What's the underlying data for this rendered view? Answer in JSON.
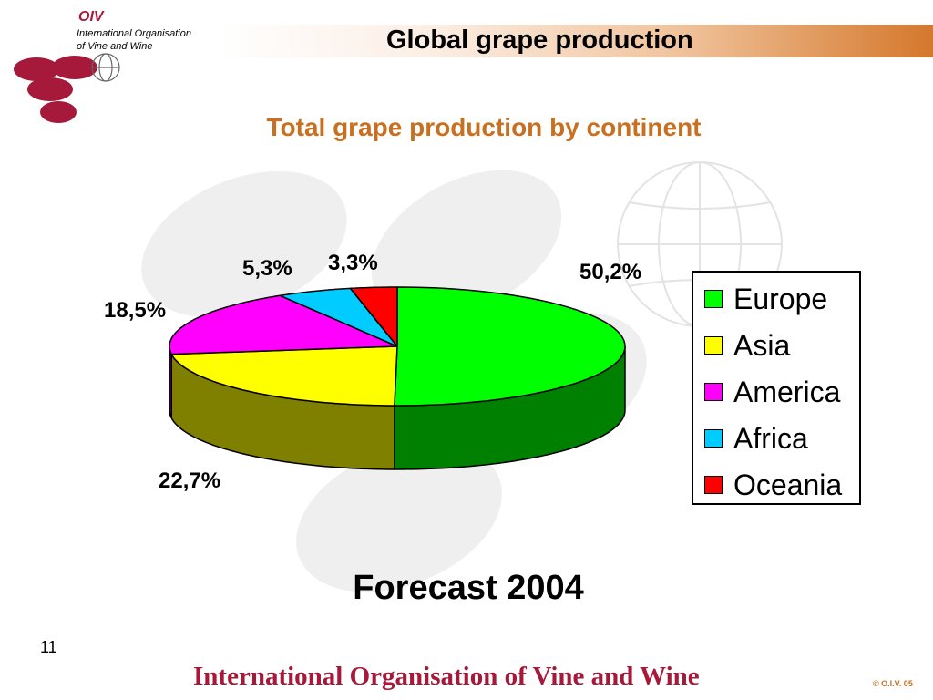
{
  "header": {
    "title": "Global grape production",
    "logo_text": "OIV",
    "org_line_1": "International Organisation",
    "org_line_2": "of  Vine  and  Wine"
  },
  "chart_data": {
    "type": "pie",
    "title": "Total grape production by continent",
    "labels": [
      "Europe",
      "Asia",
      "America",
      "Africa",
      "Oceania"
    ],
    "values": [
      50.2,
      22.7,
      18.5,
      5.3,
      3.3
    ],
    "value_labels": [
      "50,2%",
      "22,7%",
      "18,5%",
      "5,3%",
      "3,3%"
    ],
    "colors": [
      "#00ff00",
      "#ffff00",
      "#ff00ff",
      "#00ccff",
      "#ff0000"
    ],
    "side_colors": [
      "#008000",
      "#808000",
      "#800080",
      "#006699",
      "#800000"
    ],
    "legend_position": "right",
    "three_d": true
  },
  "subtitle": "Forecast 2004",
  "footer": {
    "page_number": "11",
    "organisation": "International Organisation of Vine and Wine",
    "copyright": "© O.I.V. 05"
  },
  "colors": {
    "accent": "#c8701f",
    "brand": "#a6193a"
  }
}
